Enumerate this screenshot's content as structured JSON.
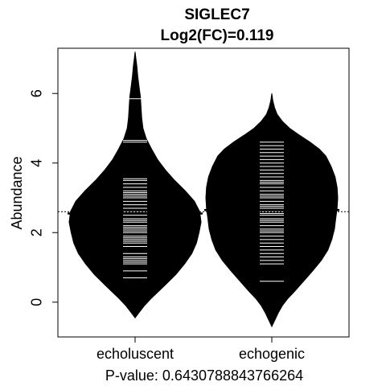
{
  "chart_data": {
    "type": "beanplot",
    "title": "SIGLEC7",
    "subtitle": "Log2(FC)=0.119",
    "xlabel": "P-value: 0.6430788843766264",
    "ylabel": "Abundance",
    "categories": [
      "echoluscent",
      "echogenic"
    ],
    "yticks": [
      "0",
      "2",
      "4",
      "6"
    ],
    "ylim": [
      -1.0,
      7.3
    ],
    "overall_mean": 2.6,
    "groups": [
      {
        "name": "echoluscent",
        "mean": 2.55,
        "density": [
          [
            -0.45,
            0
          ],
          [
            -0.3,
            0.06
          ],
          [
            -0.1,
            0.14
          ],
          [
            0.1,
            0.24
          ],
          [
            0.3,
            0.35
          ],
          [
            0.5,
            0.46
          ],
          [
            0.8,
            0.62
          ],
          [
            1.1,
            0.75
          ],
          [
            1.4,
            0.86
          ],
          [
            1.7,
            0.93
          ],
          [
            2.0,
            0.97
          ],
          [
            2.3,
            1.0
          ],
          [
            2.6,
            0.98
          ],
          [
            2.9,
            0.9
          ],
          [
            3.2,
            0.76
          ],
          [
            3.5,
            0.6
          ],
          [
            3.8,
            0.46
          ],
          [
            4.1,
            0.34
          ],
          [
            4.4,
            0.25
          ],
          [
            4.7,
            0.17
          ],
          [
            5.0,
            0.12
          ],
          [
            5.3,
            0.1
          ],
          [
            5.6,
            0.09
          ],
          [
            5.9,
            0.08
          ],
          [
            6.2,
            0.06
          ],
          [
            6.5,
            0.04
          ],
          [
            6.8,
            0.025
          ],
          [
            7.0,
            0.012
          ],
          [
            7.2,
            0
          ]
        ],
        "points": [
          0.7,
          0.9,
          1.1,
          1.15,
          1.2,
          1.25,
          1.3,
          1.4,
          1.6,
          1.7,
          1.75,
          1.8,
          1.85,
          1.9,
          2.0,
          2.05,
          2.1,
          2.15,
          2.2,
          2.3,
          2.35,
          2.4,
          2.5,
          2.55,
          2.6,
          2.7,
          2.8,
          2.9,
          3.0,
          3.05,
          3.1,
          3.15,
          3.2,
          3.3,
          3.4,
          3.5,
          3.55,
          4.6,
          4.65,
          5.85
        ]
      },
      {
        "name": "echogenic",
        "mean": 2.65,
        "density": [
          [
            -0.7,
            0
          ],
          [
            -0.5,
            0.05
          ],
          [
            -0.3,
            0.1
          ],
          [
            -0.1,
            0.16
          ],
          [
            0.1,
            0.24
          ],
          [
            0.3,
            0.34
          ],
          [
            0.6,
            0.48
          ],
          [
            0.9,
            0.62
          ],
          [
            1.2,
            0.75
          ],
          [
            1.5,
            0.85
          ],
          [
            1.8,
            0.91
          ],
          [
            2.1,
            0.95
          ],
          [
            2.4,
            0.97
          ],
          [
            2.7,
            0.99
          ],
          [
            3.0,
            1.0
          ],
          [
            3.3,
            0.99
          ],
          [
            3.6,
            0.96
          ],
          [
            3.9,
            0.9
          ],
          [
            4.2,
            0.82
          ],
          [
            4.4,
            0.72
          ],
          [
            4.6,
            0.58
          ],
          [
            4.8,
            0.42
          ],
          [
            5.0,
            0.27
          ],
          [
            5.2,
            0.16
          ],
          [
            5.4,
            0.08
          ],
          [
            5.6,
            0.04
          ],
          [
            5.8,
            0.015
          ],
          [
            6.0,
            0
          ]
        ],
        "points": [
          0.6,
          1.1,
          1.2,
          1.3,
          1.4,
          1.5,
          1.6,
          1.7,
          1.8,
          1.9,
          2.0,
          2.05,
          2.1,
          2.2,
          2.3,
          2.35,
          2.4,
          2.5,
          2.55,
          2.6,
          2.7,
          2.75,
          2.8,
          2.9,
          3.0,
          3.05,
          3.1,
          3.2,
          3.3,
          3.4,
          3.45,
          3.5,
          3.6,
          3.7,
          3.8,
          3.9,
          4.0,
          4.1,
          4.2,
          4.3,
          4.4,
          4.5,
          4.6
        ]
      }
    ]
  }
}
